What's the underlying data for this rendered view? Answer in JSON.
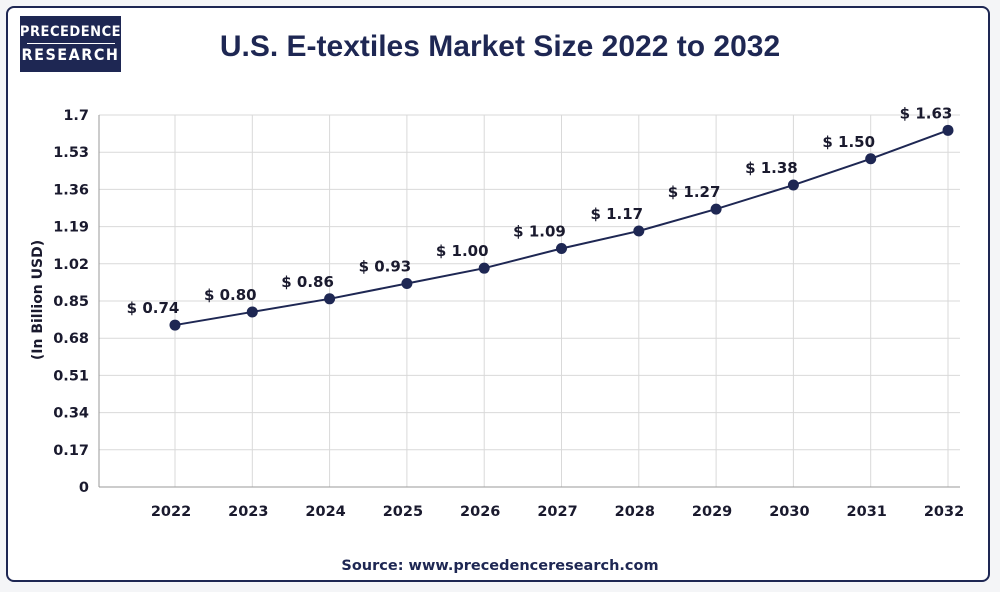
{
  "brand": {
    "line1": "PRECEDENCE",
    "line2": "RESEARCH"
  },
  "source": "Source: www.precedenceresearch.com",
  "colors": {
    "navy": "#1e2753",
    "grid": "#d9d9d9",
    "text": "#1a1a2e"
  },
  "chart_data": {
    "type": "line",
    "title": "U.S. E-textiles Market Size 2022 to 2032",
    "xlabel": "",
    "ylabel": "(In Billion USD)",
    "categories": [
      "2022",
      "2023",
      "2024",
      "2025",
      "2026",
      "2027",
      "2028",
      "2029",
      "2030",
      "2031",
      "2032"
    ],
    "series": [
      {
        "values": [
          0.74,
          0.8,
          0.86,
          0.93,
          1.0,
          1.09,
          1.17,
          1.27,
          1.38,
          1.5,
          1.63
        ]
      }
    ],
    "data_labels": [
      "$ 0.74",
      "$ 0.80",
      "$ 0.86",
      "$ 0.93",
      "$ 1.00",
      "$ 1.09",
      "$ 1.17",
      "$ 1.27",
      "$ 1.38",
      "$ 1.50",
      "$ 1.63"
    ],
    "yticks": [
      0,
      0.17,
      0.34,
      0.51,
      0.68,
      0.85,
      1.02,
      1.19,
      1.36,
      1.53,
      1.7
    ],
    "ytick_labels": [
      "0",
      "0.17",
      "0.34",
      "0.51",
      "0.68",
      "0.85",
      "1.02",
      "1.19",
      "1.36",
      "1.53",
      "1.7"
    ],
    "ylim": [
      0,
      1.7
    ],
    "grid": true,
    "legend": "none"
  }
}
